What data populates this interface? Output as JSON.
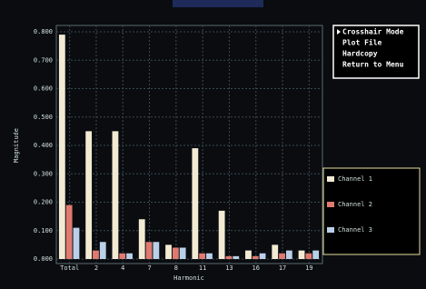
{
  "chart_data": {
    "type": "bar",
    "x_label": "Harmonic",
    "y_label": "Magnitude",
    "categories": [
      "Total",
      "2",
      "4",
      "7",
      "8",
      "11",
      "13",
      "16",
      "17",
      "19"
    ],
    "series": [
      {
        "name": "Channel 1",
        "color": "#f2ead2",
        "values": [
          0.79,
          0.45,
          0.45,
          0.14,
          0.05,
          0.39,
          0.17,
          0.03,
          0.05,
          0.03
        ]
      },
      {
        "name": "Channel 2",
        "color": "#e07a70",
        "values": [
          0.19,
          0.03,
          0.02,
          0.06,
          0.04,
          0.02,
          0.01,
          0.01,
          0.02,
          0.02
        ]
      },
      {
        "name": "Channel 3",
        "color": "#b9d0e8",
        "values": [
          0.11,
          0.06,
          0.02,
          0.06,
          0.04,
          0.02,
          0.01,
          0.02,
          0.03,
          0.03
        ]
      }
    ],
    "ylim": [
      0,
      0.8
    ],
    "yticks": [
      {
        "value": 0,
        "label": "0.000"
      },
      {
        "value": 0.1,
        "label": "0.100"
      },
      {
        "value": 0.2,
        "label": "0.200"
      },
      {
        "value": 0.3,
        "label": "0.300"
      },
      {
        "value": 0.4,
        "label": "0.400"
      },
      {
        "value": 0.5,
        "label": "0.500"
      },
      {
        "value": 0.6,
        "label": "0.600"
      },
      {
        "value": 0.7,
        "label": "0.700"
      },
      {
        "value": 0.8,
        "label": "0.800"
      }
    ],
    "grid": true
  },
  "menu": [
    "Crosshair Mode",
    "Plot File",
    "Hardcopy",
    "Return to Menu"
  ]
}
